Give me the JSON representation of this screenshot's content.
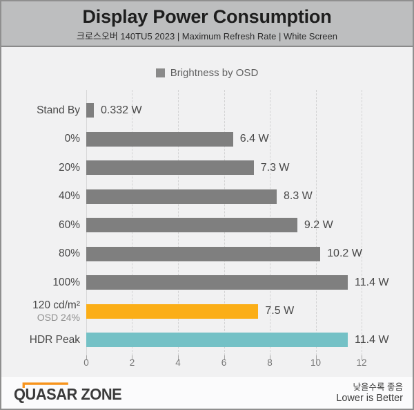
{
  "header": {
    "title": "Display Power Consumption",
    "subtitle": "크로스오버 140TU5 2023  |  Maximum Refresh Rate  |  White Screen"
  },
  "chart_data": {
    "type": "bar",
    "orientation": "horizontal",
    "title": "Display Power Consumption",
    "subtitle": "크로스오버 140TU5 2023 | Maximum Refresh Rate | White Screen",
    "legend": [
      {
        "label": "Brightness by OSD",
        "color": "#7F7F7F"
      }
    ],
    "legend_position": "top-center",
    "grid": "vertical-dashed",
    "unit": "W",
    "xlim": [
      0,
      12
    ],
    "xticks": [
      0,
      2,
      4,
      6,
      8,
      10,
      12
    ],
    "rows": [
      {
        "label": "Stand By",
        "sublabel": "",
        "value": 0.332,
        "value_label": "0.332 W",
        "color": "#7F7F7F"
      },
      {
        "label": "0%",
        "sublabel": "",
        "value": 6.4,
        "value_label": "6.4 W",
        "color": "#7F7F7F"
      },
      {
        "label": "20%",
        "sublabel": "",
        "value": 7.3,
        "value_label": "7.3 W",
        "color": "#7F7F7F"
      },
      {
        "label": "40%",
        "sublabel": "",
        "value": 8.3,
        "value_label": "8.3 W",
        "color": "#7F7F7F"
      },
      {
        "label": "60%",
        "sublabel": "",
        "value": 9.2,
        "value_label": "9.2 W",
        "color": "#7F7F7F"
      },
      {
        "label": "80%",
        "sublabel": "",
        "value": 10.2,
        "value_label": "10.2 W",
        "color": "#7F7F7F"
      },
      {
        "label": "100%",
        "sublabel": "",
        "value": 11.4,
        "value_label": "11.4 W",
        "color": "#7F7F7F"
      },
      {
        "label": "120 cd/m²",
        "sublabel": "OSD 24%",
        "value": 7.5,
        "value_label": "7.5 W",
        "color": "#FBAE17"
      },
      {
        "label": "HDR Peak",
        "sublabel": "",
        "value": 11.4,
        "value_label": "11.4 W",
        "color": "#74C1C6"
      }
    ]
  },
  "footer": {
    "logo_text": "QUASAR ZONE",
    "note_korean": "낮을수록 좋음",
    "note_english": "Lower is Better"
  },
  "colors": {
    "header_bg": "#BDBEBF",
    "chart_bg": "#F1F1F2",
    "bar_gray": "#7F7F7F",
    "bar_orange": "#FBAE17",
    "bar_teal": "#74C1C6",
    "logo_accent": "#F7941D"
  }
}
